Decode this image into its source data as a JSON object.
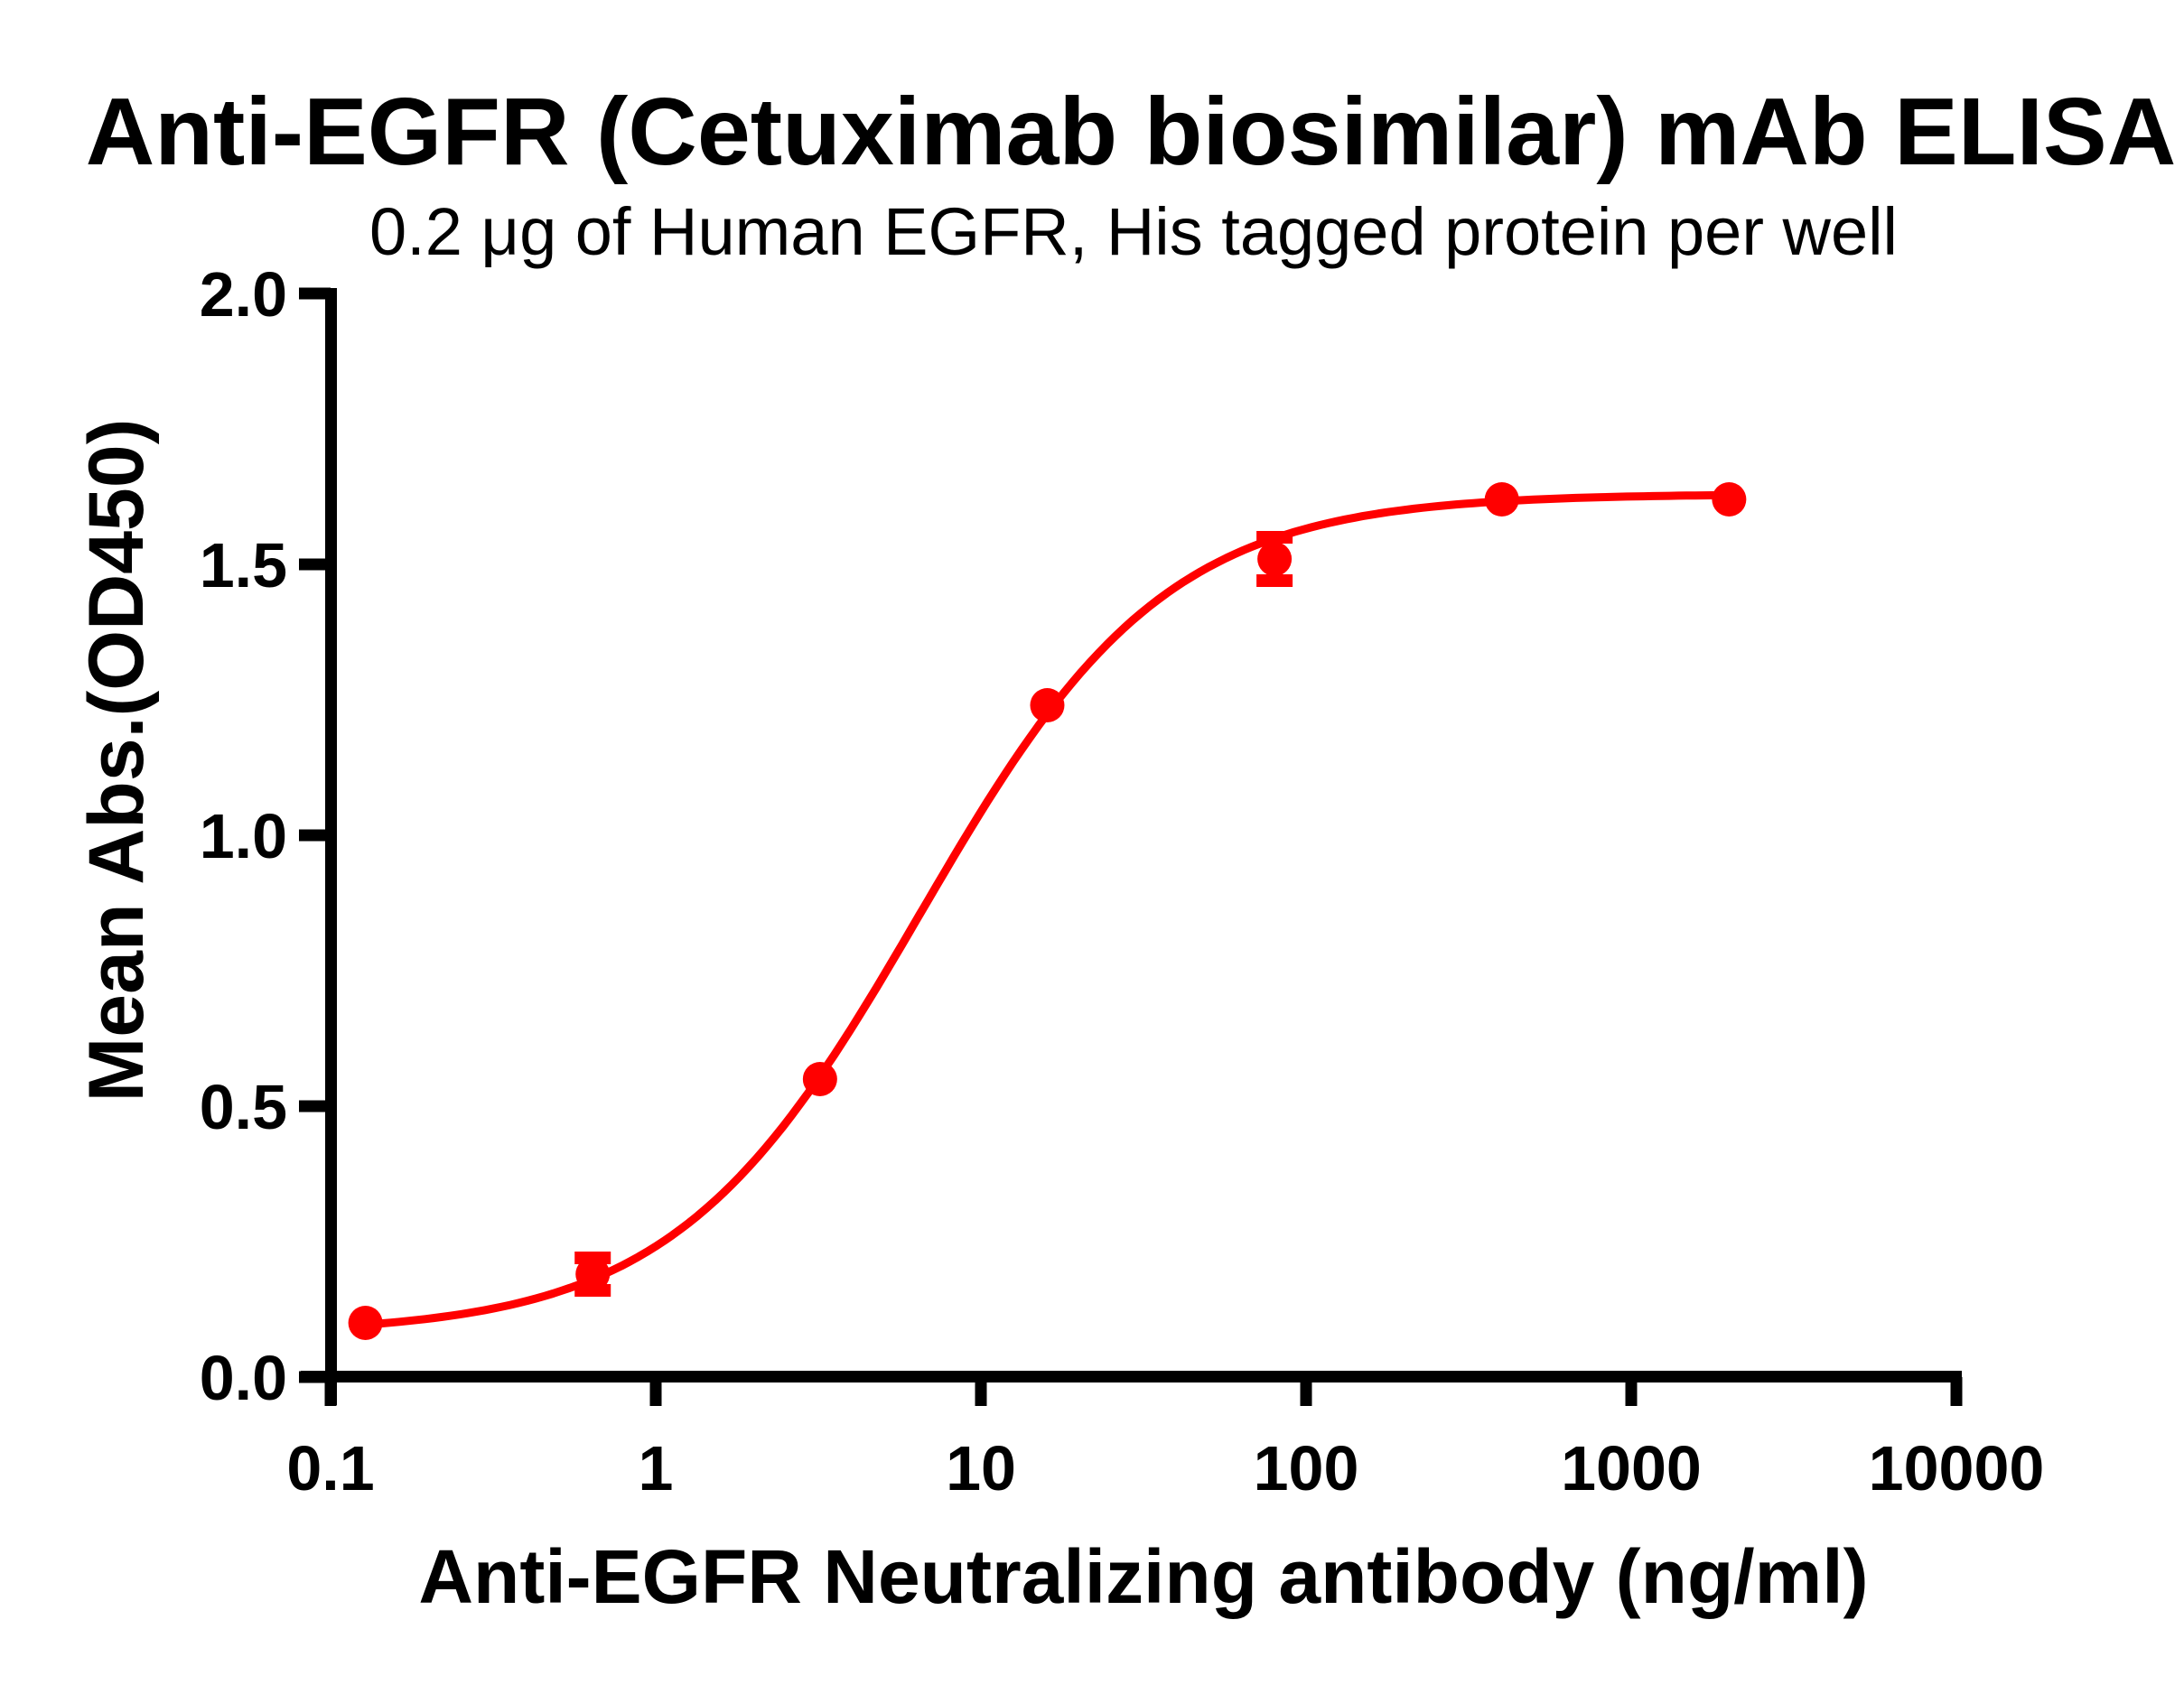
{
  "chart_data": {
    "type": "line",
    "title": "Anti-EGFR (Cetuximab biosimilar) mAb ELISA",
    "subtitle": "0.2 μg of Human EGFR, His tagged protein per well",
    "xlabel": "Anti-EGFR Neutralizing antibody (ng/ml)",
    "ylabel": "Mean Abs.(OD450)",
    "x_scale": "log10",
    "xlim": [
      0.1,
      10000
    ],
    "ylim": [
      0.0,
      2.0
    ],
    "x_ticks": [
      0.1,
      1,
      10,
      100,
      1000,
      10000
    ],
    "x_tick_labels": [
      "0.1",
      "1",
      "10",
      "100",
      "1000",
      "10000"
    ],
    "y_ticks": [
      0.0,
      0.5,
      1.0,
      1.5,
      2.0
    ],
    "y_tick_labels": [
      "0.0",
      "0.5",
      "1.0",
      "1.5",
      "2.0"
    ],
    "grid": false,
    "legend": "none",
    "colors": {
      "series": "#ff0000",
      "axis": "#000000",
      "background": "#ffffff"
    },
    "series": [
      {
        "marker": "circle",
        "color": "#ff0000",
        "points": [
          {
            "x": 0.128,
            "y": 0.1,
            "sd": 0.0
          },
          {
            "x": 0.64,
            "y": 0.19,
            "sd": 0.03
          },
          {
            "x": 3.2,
            "y": 0.55,
            "sd": 0.0
          },
          {
            "x": 16,
            "y": 1.24,
            "sd": 0.0
          },
          {
            "x": 80,
            "y": 1.51,
            "sd": 0.04
          },
          {
            "x": 400,
            "y": 1.62,
            "sd": 0.0
          },
          {
            "x": 2000,
            "y": 1.62,
            "sd": 0.0
          }
        ],
        "fit_curve": {
          "model": "4PL",
          "bottom": 0.08,
          "top": 1.63,
          "ec50": 6.5,
          "hill": 1.15,
          "x_start": 0.128,
          "x_end": 2000
        }
      }
    ]
  }
}
